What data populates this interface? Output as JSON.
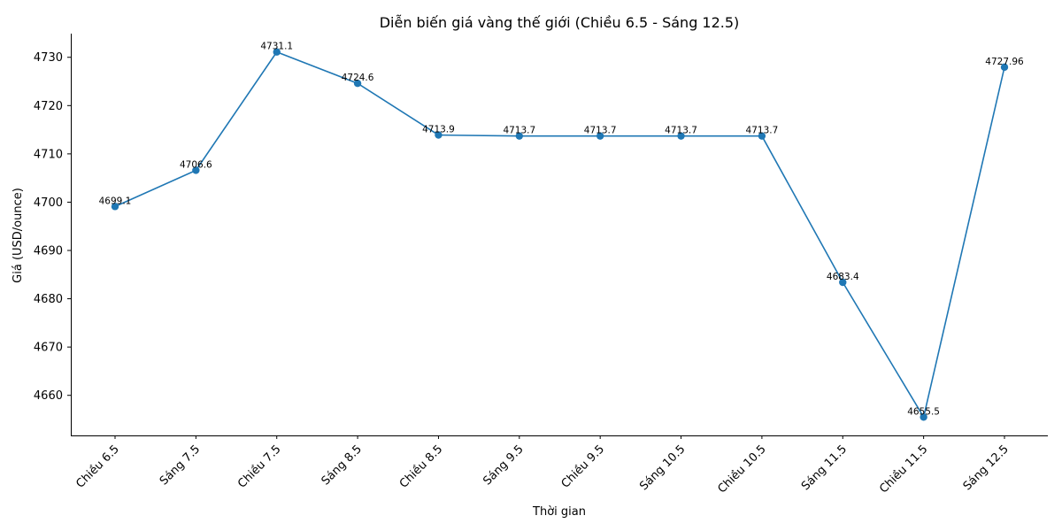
{
  "chart_data": {
    "type": "line",
    "title": "Diễn biến giá vàng thế giới (Chiều 6.5 - Sáng 12.5)",
    "xlabel": "Thời gian",
    "ylabel": "Giá (USD/ounce)",
    "categories": [
      "Chiều 6.5",
      "Sáng 7.5",
      "Chiều 7.5",
      "Sáng 8.5",
      "Chiều 8.5",
      "Sáng 9.5",
      "Chiều 9.5",
      "Sáng 10.5",
      "Chiều 10.5",
      "Sáng 11.5",
      "Chiều 11.5",
      "Sáng 12.5"
    ],
    "values": [
      4699.1,
      4706.6,
      4731.1,
      4724.6,
      4713.9,
      4713.7,
      4713.7,
      4713.7,
      4713.7,
      4683.4,
      4655.5,
      4727.96
    ],
    "data_labels": [
      "4699.1",
      "4706.6",
      "4731.1",
      "4724.6",
      "4713.9",
      "4713.7",
      "4713.7",
      "4713.7",
      "4713.7",
      "4683.4",
      "4655.5",
      "4727.96"
    ],
    "ylim": [
      4651.7,
      4734.9
    ],
    "yticks": [
      4660,
      4670,
      4680,
      4690,
      4700,
      4710,
      4720,
      4730
    ],
    "grid": false,
    "legend": "none",
    "color": "#1f77b4"
  }
}
